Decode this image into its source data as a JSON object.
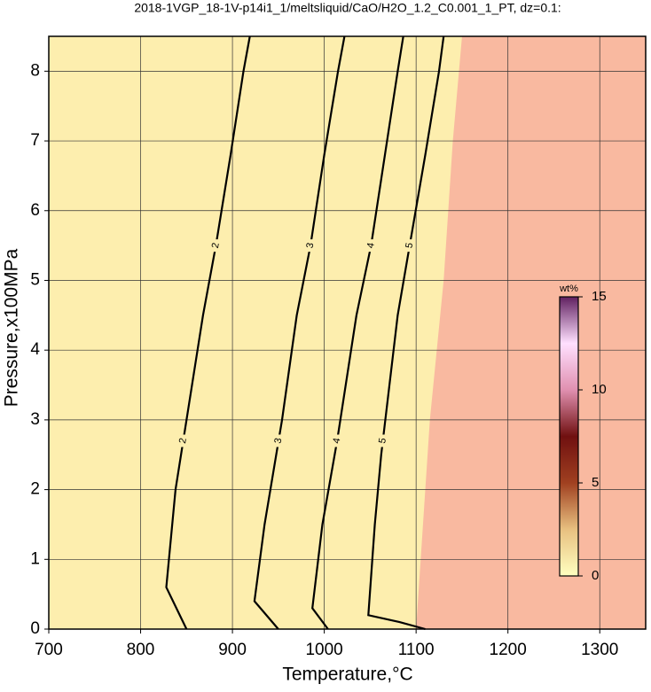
{
  "chart_data": {
    "type": "contour",
    "title": "2018-1VGP_18-1V-p14i1_1/meltsliquid/CaO/H2O_1.2_C0.001_1_PT, dz=0.1:",
    "xlabel": "Temperature,°C",
    "ylabel": "Pressure,x100MPa",
    "xlim": [
      700,
      1350
    ],
    "ylim": [
      0,
      8.5
    ],
    "xticks": [
      700,
      800,
      900,
      1000,
      1100,
      1200,
      1300
    ],
    "yticks": [
      0,
      1,
      2,
      3,
      4,
      5,
      6,
      7,
      8
    ],
    "grid": true,
    "background_color": "#fdeeae",
    "line_color": "#000000",
    "shaded_region": {
      "color": "#f9b9a0",
      "x": [
        1100,
        1105,
        1115,
        1130,
        1140,
        1150
      ],
      "values": [
        0,
        1,
        3,
        5,
        7,
        8.5
      ]
    },
    "series": [
      {
        "name": "2",
        "x": [
          850,
          828,
          838,
          850,
          868,
          882,
          898,
          912,
          919
        ],
        "values": [
          0,
          0.6,
          2,
          3,
          4.5,
          5.5,
          6.8,
          8,
          8.5
        ]
      },
      {
        "name": "3",
        "x": [
          950,
          924,
          935,
          954,
          970,
          985,
          1000,
          1015,
          1022
        ],
        "values": [
          0,
          0.4,
          1.5,
          3,
          4.5,
          5.5,
          6.8,
          8,
          8.5
        ]
      },
      {
        "name": "4",
        "x": [
          1004,
          987,
          998,
          1014,
          1035,
          1051,
          1066,
          1080,
          1086
        ],
        "values": [
          0,
          0.3,
          1.5,
          2.7,
          4.5,
          5.5,
          6.8,
          8,
          8.5
        ]
      },
      {
        "name": "5",
        "x": [
          1110,
          1082,
          1048,
          1055,
          1062,
          1080,
          1093,
          1110,
          1125,
          1130
        ],
        "values": [
          0,
          0.1,
          0.2,
          1.5,
          2.5,
          4.5,
          5.5,
          6.8,
          8,
          8.5
        ]
      }
    ],
    "colorbar": {
      "label": "wt%",
      "lim": [
        0,
        15
      ],
      "ticks": [
        0,
        5,
        10,
        15
      ],
      "colors": [
        "#ffffc0",
        "#e8c080",
        "#a04020",
        "#701010",
        "#e090b0",
        "#ffe0ff",
        "#602060"
      ]
    }
  }
}
